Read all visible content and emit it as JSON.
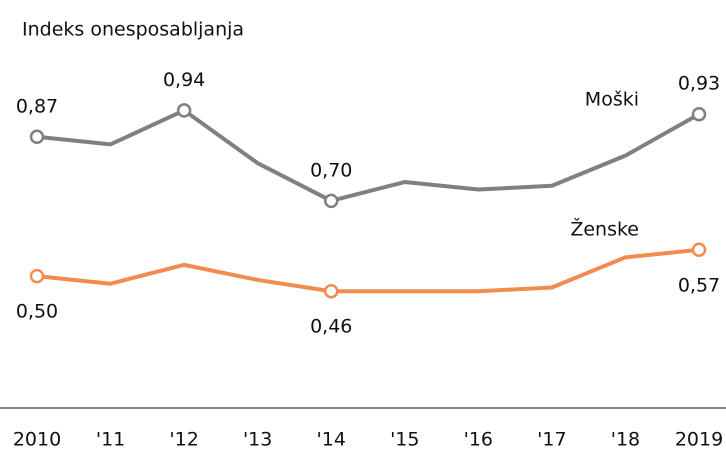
{
  "chart_data": {
    "type": "line",
    "title": "Indeks onesposabljanja",
    "categories": [
      "2010",
      "'11",
      "'12",
      "'13",
      "'14",
      "'15",
      "'16",
      "'17",
      "'18",
      "2019"
    ],
    "series": [
      {
        "name": "Moški",
        "color": "#808080",
        "values": [
          0.87,
          0.85,
          0.94,
          0.8,
          0.7,
          0.75,
          0.73,
          0.74,
          0.82,
          0.93
        ],
        "value_labels": [
          "0,87",
          null,
          "0,94",
          null,
          "0,70",
          null,
          null,
          null,
          null,
          "0,93"
        ]
      },
      {
        "name": "Ženske",
        "color": "#f28b4e",
        "values": [
          0.5,
          0.48,
          0.53,
          0.49,
          0.46,
          0.46,
          0.46,
          0.47,
          0.55,
          0.57
        ],
        "value_labels": [
          "0,50",
          null,
          null,
          null,
          "0,46",
          null,
          null,
          null,
          null,
          "0,57"
        ]
      }
    ],
    "ylim": [
      0.15,
      1.2
    ]
  }
}
